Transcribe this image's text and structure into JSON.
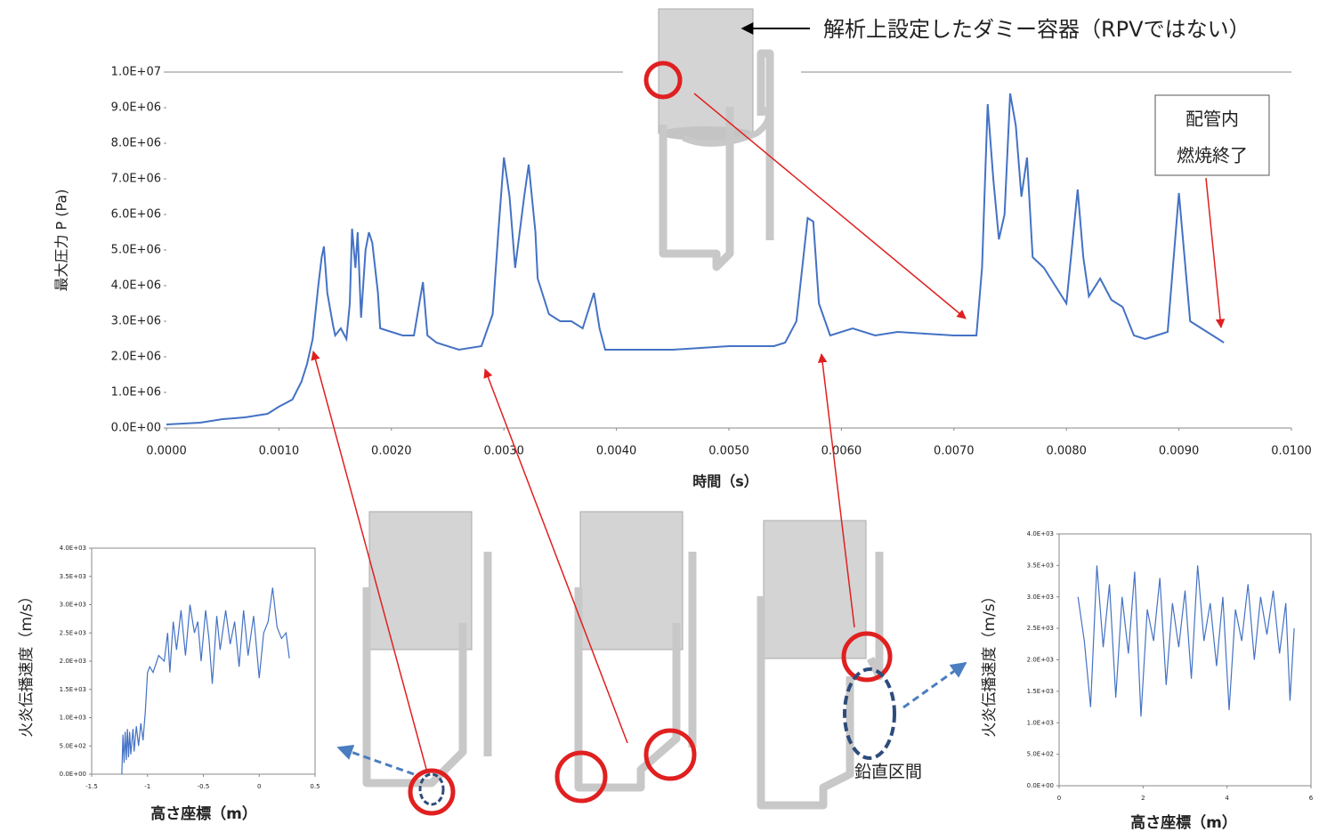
{
  "chart_data": [
    {
      "type": "line",
      "color": "#4472c4",
      "x_label": "時間（s）",
      "y_label": "最大圧力 P (Pa)",
      "x": [
        0,
        0.0003,
        0.0005,
        0.0007,
        0.0009,
        0.001,
        0.00112,
        0.0012,
        0.00125,
        0.0013,
        0.00135,
        0.00138,
        0.0014,
        0.00143,
        0.00148,
        0.0015,
        0.00155,
        0.0016,
        0.00163,
        0.00165,
        0.00168,
        0.0017,
        0.00173,
        0.00177,
        0.0018,
        0.00183,
        0.00188,
        0.0019,
        0.002,
        0.0021,
        0.0022,
        0.00228,
        0.00232,
        0.0024,
        0.0026,
        0.0028,
        0.0029,
        0.00295,
        0.003,
        0.00305,
        0.0031,
        0.00318,
        0.00322,
        0.00328,
        0.0033,
        0.0034,
        0.0035,
        0.0036,
        0.0037,
        0.0038,
        0.00385,
        0.0039,
        0.0045,
        0.005,
        0.0054,
        0.0055,
        0.0056,
        0.0057,
        0.00575,
        0.0058,
        0.0059,
        0.0061,
        0.0063,
        0.0065,
        0.007,
        0.0072,
        0.00725,
        0.0073,
        0.00735,
        0.0074,
        0.00745,
        0.0075,
        0.00755,
        0.0076,
        0.00765,
        0.0077,
        0.0078,
        0.0079,
        0.008,
        0.0081,
        0.00815,
        0.0082,
        0.0083,
        0.0084,
        0.0085,
        0.0086,
        0.0087,
        0.0088,
        0.0089,
        0.009,
        0.0091,
        0.0092,
        0.0093,
        0.0094
      ],
      "values": [
        100000.0,
        150000.0,
        250000.0,
        300000.0,
        400000.0,
        600000.0,
        800000.0,
        1300000.0,
        1800000.0,
        2500000.0,
        4000000.0,
        4800000.0,
        5100000.0,
        3800000.0,
        2900000.0,
        2600000.0,
        2800000.0,
        2500000.0,
        3500000.0,
        5600000.0,
        4500000.0,
        5500000.0,
        3100000.0,
        5000000.0,
        5500000.0,
        5200000.0,
        3800000.0,
        2800000.0,
        2700000.0,
        2600000.0,
        2600000.0,
        4100000.0,
        2600000.0,
        2400000.0,
        2200000.0,
        2300000.0,
        3200000.0,
        5500000.0,
        7600000.0,
        6500000.0,
        4500000.0,
        6500000.0,
        7400000.0,
        5500000.0,
        4200000.0,
        3200000.0,
        3000000.0,
        3000000.0,
        2800000.0,
        3800000.0,
        2800000.0,
        2200000.0,
        2200000.0,
        2300000.0,
        2300000.0,
        2400000.0,
        3000000.0,
        5900000.0,
        5800000.0,
        3500000.0,
        2600000.0,
        2800000.0,
        2600000.0,
        2700000.0,
        2600000.0,
        2600000.0,
        4500000.0,
        9100000.0,
        7000000.0,
        5300000.0,
        6000000.0,
        9400000.0,
        8500000.0,
        6500000.0,
        7600000.0,
        4800000.0,
        4500000.0,
        4000000.0,
        3500000.0,
        6700000.0,
        4800000.0,
        3700000.0,
        4200000.0,
        3600000.0,
        3400000.0,
        2600000.0,
        2500000.0,
        2600000.0,
        2700000.0,
        6600000.0,
        3000000.0,
        2800000.0,
        2600000.0,
        2400000.0
      ],
      "xlim": [
        0,
        0.01
      ],
      "xticks": [
        {
          "value": 0,
          "label": "0.0000"
        },
        {
          "value": 0.001,
          "label": "0.0010"
        },
        {
          "value": 0.002,
          "label": "0.0020"
        },
        {
          "value": 0.003,
          "label": "0.0030"
        },
        {
          "value": 0.004,
          "label": "0.0040"
        },
        {
          "value": 0.005,
          "label": "0.0050"
        },
        {
          "value": 0.006,
          "label": "0.0060"
        },
        {
          "value": 0.007,
          "label": "0.0070"
        },
        {
          "value": 0.008,
          "label": "0.0080"
        },
        {
          "value": 0.009,
          "label": "0.0090"
        },
        {
          "value": 0.01,
          "label": "0.0100"
        }
      ],
      "ylim": [
        0,
        10000000
      ],
      "yticks": [
        {
          "value": 0,
          "label": "0.0E+00"
        },
        {
          "value": 1000000,
          "label": "1.0E+06"
        },
        {
          "value": 2000000,
          "label": "2.0E+06"
        },
        {
          "value": 3000000,
          "label": "3.0E+06"
        },
        {
          "value": 4000000,
          "label": "4.0E+06"
        },
        {
          "value": 5000000,
          "label": "5.0E+06"
        },
        {
          "value": 6000000,
          "label": "6.0E+06"
        },
        {
          "value": 7000000,
          "label": "7.0E+06"
        },
        {
          "value": 8000000,
          "label": "8.0E+06"
        },
        {
          "value": 9000000,
          "label": "9.0E+06"
        },
        {
          "value": 10000000,
          "label": "1.0E+07"
        }
      ],
      "grid": false
    },
    {
      "type": "line",
      "color": "#4472c4",
      "x_label": "高さ座標（m）",
      "y_label": "火炎伝播速度（m/s）",
      "x": [
        -1.23,
        -1.22,
        -1.21,
        -1.2,
        -1.19,
        -1.18,
        -1.17,
        -1.16,
        -1.15,
        -1.13,
        -1.12,
        -1.1,
        -1.08,
        -1.06,
        -1.04,
        -1.02,
        -1.0,
        -0.98,
        -0.95,
        -0.9,
        -0.85,
        -0.82,
        -0.8,
        -0.77,
        -0.74,
        -0.7,
        -0.66,
        -0.62,
        -0.58,
        -0.55,
        -0.52,
        -0.48,
        -0.45,
        -0.42,
        -0.38,
        -0.35,
        -0.3,
        -0.26,
        -0.22,
        -0.18,
        -0.14,
        -0.1,
        -0.05,
        0.0,
        0.04,
        0.08,
        0.12,
        0.16,
        0.2,
        0.24,
        0.27
      ],
      "values": [
        0,
        700,
        200,
        750,
        250,
        800,
        300,
        750,
        350,
        800,
        400,
        850,
        500,
        900,
        600,
        1100,
        1800,
        1900,
        1800,
        2100,
        2000,
        2500,
        1800,
        2700,
        2200,
        2900,
        2100,
        3000,
        2500,
        2700,
        2000,
        2900,
        2400,
        1600,
        2800,
        2200,
        2900,
        2300,
        2700,
        1900,
        2900,
        2100,
        2800,
        1700,
        2500,
        2700,
        3300,
        2600,
        2400,
        2500,
        2050
      ],
      "xlim": [
        -1.5,
        0.5
      ],
      "xticks": [
        -1.5,
        -1,
        -0.5,
        0,
        0.5
      ],
      "ylim": [
        0,
        4000
      ],
      "yticks": [
        {
          "value": 0,
          "label": "0.0E+00"
        },
        {
          "value": 500,
          "label": "5.0E+02"
        },
        {
          "value": 1000,
          "label": "1.0E+03"
        },
        {
          "value": 1500,
          "label": "1.5E+03"
        },
        {
          "value": 2000,
          "label": "2.0E+03"
        },
        {
          "value": 2500,
          "label": "2.5E+03"
        },
        {
          "value": 3000,
          "label": "3.0E+03"
        },
        {
          "value": 3500,
          "label": "3.5E+03"
        },
        {
          "value": 4000,
          "label": "4.0E+03"
        }
      ],
      "grid": false
    },
    {
      "type": "line",
      "color": "#4472c4",
      "x_label": "高さ座標（m）",
      "y_label": "火炎伝播速度（m/s）",
      "x": [
        0.45,
        0.6,
        0.75,
        0.9,
        1.05,
        1.2,
        1.35,
        1.5,
        1.65,
        1.8,
        1.95,
        2.1,
        2.25,
        2.4,
        2.55,
        2.7,
        2.85,
        3.0,
        3.15,
        3.3,
        3.45,
        3.6,
        3.75,
        3.9,
        4.05,
        4.2,
        4.35,
        4.5,
        4.65,
        4.8,
        4.95,
        5.1,
        5.25,
        5.4,
        5.5,
        5.6
      ],
      "values": [
        3000,
        2300,
        1250,
        3500,
        2200,
        3200,
        1400,
        3000,
        2100,
        3400,
        1100,
        2800,
        2300,
        3300,
        1600,
        2900,
        2200,
        3100,
        1700,
        3500,
        2300,
        2900,
        1900,
        3000,
        1200,
        2800,
        2300,
        3200,
        2000,
        3000,
        2400,
        3100,
        2100,
        2900,
        1350,
        2500
      ],
      "xlim": [
        0,
        6
      ],
      "xticks": [
        0,
        2,
        4,
        6
      ],
      "ylim": [
        0,
        4000
      ],
      "yticks": [
        {
          "value": 0,
          "label": "0.0E+00"
        },
        {
          "value": 500,
          "label": "5.0E+02"
        },
        {
          "value": 1000,
          "label": "1.0E+03"
        },
        {
          "value": 1500,
          "label": "1.5E+03"
        },
        {
          "value": 2000,
          "label": "2.0E+03"
        },
        {
          "value": 2500,
          "label": "2.5E+03"
        },
        {
          "value": 3000,
          "label": "3.0E+03"
        },
        {
          "value": 3500,
          "label": "3.5E+03"
        },
        {
          "value": 4000,
          "label": "4.0E+03"
        }
      ],
      "grid": false
    }
  ],
  "annotations": {
    "dummy_vessel": "解析上設定したダミー容器（RPVではない）",
    "combustion_end": [
      "配管内",
      "燃焼終了"
    ],
    "vertical_section": "鉛直区間"
  }
}
